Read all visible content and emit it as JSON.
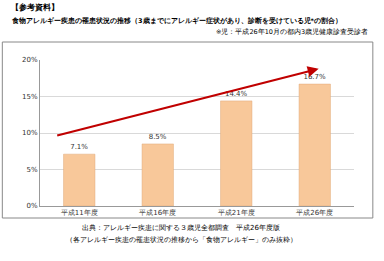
{
  "chart_data": {
    "type": "bar",
    "title": "食物アレルギー疾患の罹患状況の推移（3歳までにアレルギー症状があり、診断を受けている児*の割合）",
    "subtitle": "※児：平成26年10月の都内3歳児健康診査受診者",
    "annotations": [
      "【参考資料】",
      "出典：アレルギー疾患に関する３歳児全都調査　平成26年度版",
      "（各アレルギー疾患の罹患状況の推移から「食物アレルギー」のみ抜粋）"
    ],
    "categories": [
      "平成11年度",
      "平成16年度",
      "平成21年度",
      "平成26年度"
    ],
    "values": [
      7.1,
      8.5,
      14.4,
      16.7
    ],
    "value_labels": [
      "7.1%",
      "8.5%",
      "14.4%",
      "16.7%"
    ],
    "color": "#f8c89a",
    "ylim": [
      0,
      20
    ],
    "yticks": [
      {
        "value": 0,
        "label": "0%"
      },
      {
        "value": 5,
        "label": "5%"
      },
      {
        "value": 10,
        "label": "10%"
      },
      {
        "value": 15,
        "label": "15%"
      },
      {
        "value": 20,
        "label": "20%"
      }
    ],
    "grid": true,
    "data_labels": true
  }
}
